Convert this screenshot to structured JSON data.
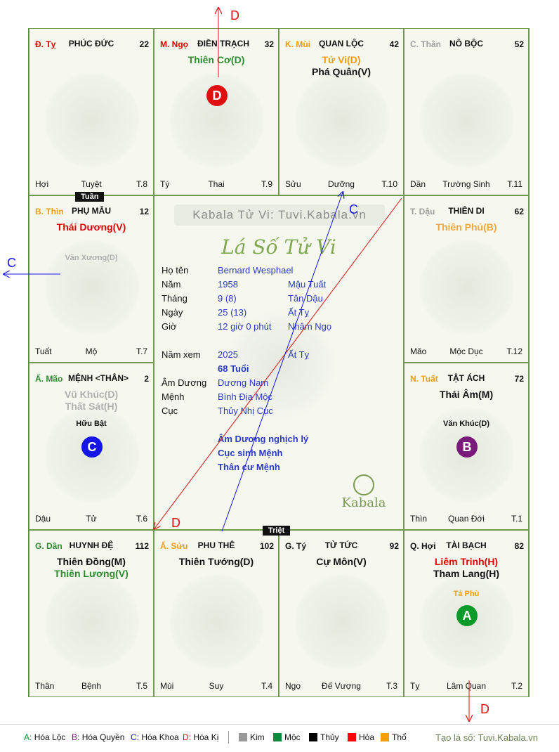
{
  "palaces": [
    {
      "key": "ty",
      "can": "Đ. Tỵ",
      "can_color": "red",
      "name": "PHÚC ĐỨC",
      "num": "22",
      "stars": [],
      "minor": [],
      "badge": null,
      "bottom": [
        "Hợi",
        "Tuyệt",
        "T.8"
      ]
    },
    {
      "key": "ngo",
      "can": "M. Ngọ",
      "can_color": "red",
      "name": "ĐIỀN TRẠCH",
      "num": "32",
      "stars": [
        {
          "t": "Thiên Cơ(D)",
          "c": "green"
        }
      ],
      "minor": [],
      "badge": {
        "l": "D",
        "c": "#e01010"
      },
      "bottom": [
        "Tý",
        "Thai",
        "T.9"
      ]
    },
    {
      "key": "mui",
      "can": "K. Mùi",
      "can_color": "orange",
      "name": "QUAN LỘC",
      "num": "42",
      "stars": [
        {
          "t": "Tử Vi(D)",
          "c": "orange"
        },
        {
          "t": "Phá Quân(V)",
          "c": "black"
        }
      ],
      "minor": [],
      "badge": null,
      "bottom": [
        "Sửu",
        "Dưỡng",
        "T.10"
      ]
    },
    {
      "key": "than",
      "can": "C. Thân",
      "can_color": "gray",
      "name": "NÔ BỘC",
      "num": "52",
      "stars": [],
      "minor": [],
      "badge": null,
      "bottom": [
        "Dần",
        "Trường Sinh",
        "T.11"
      ]
    },
    {
      "key": "thin",
      "can": "B. Thìn",
      "can_color": "orange",
      "name": "PHỤ MẪU",
      "num": "12",
      "stars": [
        {
          "t": "Thái Dương(V)",
          "c": "red"
        }
      ],
      "minor": [
        {
          "t": "Văn Xương(D)",
          "c": "lgray"
        }
      ],
      "badge": null,
      "bottom": [
        "Tuất",
        "Mộ",
        "T.7"
      ]
    },
    {
      "key": "dau",
      "can": "T. Dậu",
      "can_color": "gray",
      "name": "THIÊN DI",
      "num": "62",
      "stars": [
        {
          "t": "Thiên Phủ(B)",
          "c": "lorange"
        }
      ],
      "minor": [],
      "badge": null,
      "bottom": [
        "Mão",
        "Mộc Dục",
        "T.12"
      ]
    },
    {
      "key": "mao",
      "can": "Ấ. Mão",
      "can_color": "green",
      "name": "MỆNH <THÂN>",
      "num": "2",
      "stars": [
        {
          "t": "Vũ Khúc(D)",
          "c": "lgray"
        },
        {
          "t": "Thất Sát(H)",
          "c": "lgray"
        }
      ],
      "minor": [
        {
          "t": "Hữu Bật",
          "c": "black"
        }
      ],
      "badge": {
        "l": "C",
        "c": "#1515e6"
      },
      "bottom": [
        "Dậu",
        "Tử",
        "T.6"
      ]
    },
    {
      "key": "tuat",
      "can": "N. Tuất",
      "can_color": "orange",
      "name": "TẬT ÁCH",
      "num": "72",
      "stars": [
        {
          "t": "Thái Âm(M)",
          "c": "black"
        }
      ],
      "minor": [
        {
          "t": "Văn Khúc(D)",
          "c": "black"
        }
      ],
      "badge": {
        "l": "B",
        "c": "#7a1a7a"
      },
      "bottom": [
        "Thìn",
        "Quan Đới",
        "T.1"
      ]
    },
    {
      "key": "dan",
      "can": "G. Dần",
      "can_color": "green",
      "name": "HUYNH ĐỆ",
      "num": "112",
      "stars": [
        {
          "t": "Thiên Đồng(M)",
          "c": "black"
        },
        {
          "t": "Thiên Lương(V)",
          "c": "green"
        }
      ],
      "minor": [],
      "badge": null,
      "bottom": [
        "Thân",
        "Bệnh",
        "T.5"
      ]
    },
    {
      "key": "suu",
      "can": "Ấ. Sửu",
      "can_color": "orange",
      "name": "PHU THÊ",
      "num": "102",
      "stars": [
        {
          "t": "Thiên Tướng(D)",
          "c": "black"
        }
      ],
      "minor": [],
      "badge": null,
      "bottom": [
        "Mùi",
        "Suy",
        "T.4"
      ]
    },
    {
      "key": "tyy",
      "can": "G. Tý",
      "can_color": "black",
      "name": "TỬ TỨC",
      "num": "92",
      "stars": [
        {
          "t": "Cự Môn(V)",
          "c": "black"
        }
      ],
      "minor": [],
      "badge": null,
      "bottom": [
        "Ngọ",
        "Đế Vượng",
        "T.3"
      ]
    },
    {
      "key": "hoi",
      "can": "Q. Hợi",
      "can_color": "black",
      "name": "TÀI BẠCH",
      "num": "82",
      "stars": [
        {
          "t": "Liêm Trinh(H)",
          "c": "red"
        },
        {
          "t": "Tham Lang(H)",
          "c": "black"
        }
      ],
      "minor": [
        {
          "t": "Tả Phù",
          "c": "orange"
        }
      ],
      "badge": {
        "l": "A",
        "c": "#0a9a2a"
      },
      "bottom": [
        "Tỵ",
        "Lâm Quan",
        "T.2"
      ]
    }
  ],
  "tags": {
    "tuan": "Tuần",
    "triet": "Triệt"
  },
  "center": {
    "banner": "Kabala Tử Vi: Tuvi.Kabala.vn",
    "title": "Lá Số Tử Vi",
    "rows": [
      {
        "k": "Họ tên",
        "v": "Bernard Wesphael",
        "v2": ""
      },
      {
        "k": "Năm",
        "v": "1958",
        "v2": "Mậu Tuất"
      },
      {
        "k": "Tháng",
        "v": "9  (8)",
        "v2": "Tân Dậu"
      },
      {
        "k": "Ngày",
        "v": "25  (13)",
        "v2": "Ất Tỵ"
      },
      {
        "k": "Giờ",
        "v": "12 giờ 0 phút",
        "v2": "Nhâm Ngọ"
      },
      {
        "k": "Năm xem",
        "v": "2025",
        "v2": "Ất Tỵ"
      },
      {
        "k": "",
        "v": "68 Tuổi",
        "v2": ""
      },
      {
        "k": "Âm Dương",
        "v": "Dương Nam",
        "v2": ""
      },
      {
        "k": "Mệnh",
        "v": "Bình Địa Mộc",
        "v2": ""
      },
      {
        "k": "Cục",
        "v": "Thủy Nhị Cục",
        "v2": ""
      }
    ],
    "notes": [
      "Âm Dương nghịch lý",
      "Cục sinh Mệnh",
      "Thân cư Mệnh"
    ],
    "logo": "Kabala"
  },
  "arrows": {
    "D": "D",
    "C": "C"
  },
  "legend": {
    "hoa": [
      {
        "l": "A:",
        "t": "Hóa Lộc",
        "c": "#0a9a2a"
      },
      {
        "l": "B:",
        "t": "Hóa Quyền",
        "c": "#7a1a7a"
      },
      {
        "l": "C:",
        "t": "Hóa Khoa",
        "c": "#1515e6"
      },
      {
        "l": "D:",
        "t": "Hóa Kị",
        "c": "#e01010"
      }
    ],
    "elements": [
      {
        "t": "Kim",
        "c": "#999999"
      },
      {
        "t": "Mộc",
        "c": "#0a8a3a"
      },
      {
        "t": "Thủy",
        "c": "#000000"
      },
      {
        "t": "Hỏa",
        "c": "#ff0000"
      },
      {
        "t": "Thổ",
        "c": "#f5a000"
      }
    ],
    "site": "Tạo lá số: Tuvi.Kabala.vn"
  }
}
